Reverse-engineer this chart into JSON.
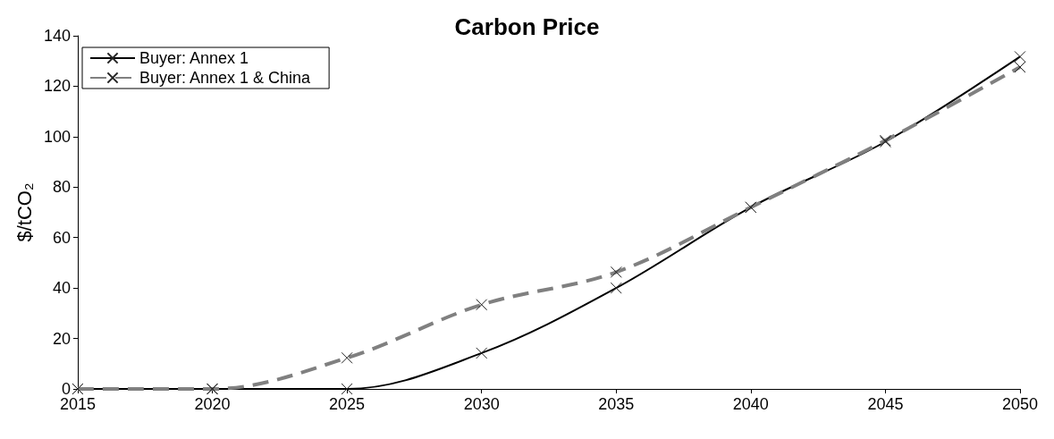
{
  "chart_data": {
    "type": "line",
    "title": "Carbon Price",
    "ylabel": "$/tCO₂",
    "x": [
      2015,
      2020,
      2025,
      2030,
      2035,
      2040,
      2045,
      2050
    ],
    "xlim": [
      2015,
      2050
    ],
    "xticks": [
      2015,
      2020,
      2025,
      2030,
      2035,
      2040,
      2045,
      2050
    ],
    "ylim": [
      0,
      140
    ],
    "yticks": [
      0,
      20,
      40,
      60,
      80,
      100,
      120,
      140
    ],
    "grid": false,
    "legend": "top left",
    "series": [
      {
        "name": "Buyer: Annex 1",
        "color": "#000000",
        "marker": "cross",
        "line_style": "solid",
        "values": [
          0,
          0,
          0,
          14.2,
          40,
          72,
          98,
          131.7
        ]
      },
      {
        "name": "Buyer: Annex 1 & China",
        "color": "#808080",
        "marker": "cross",
        "line_style": "dashed",
        "values": [
          0,
          0,
          12.3,
          33.4,
          46.3,
          72,
          98.5,
          127.6
        ]
      }
    ]
  }
}
